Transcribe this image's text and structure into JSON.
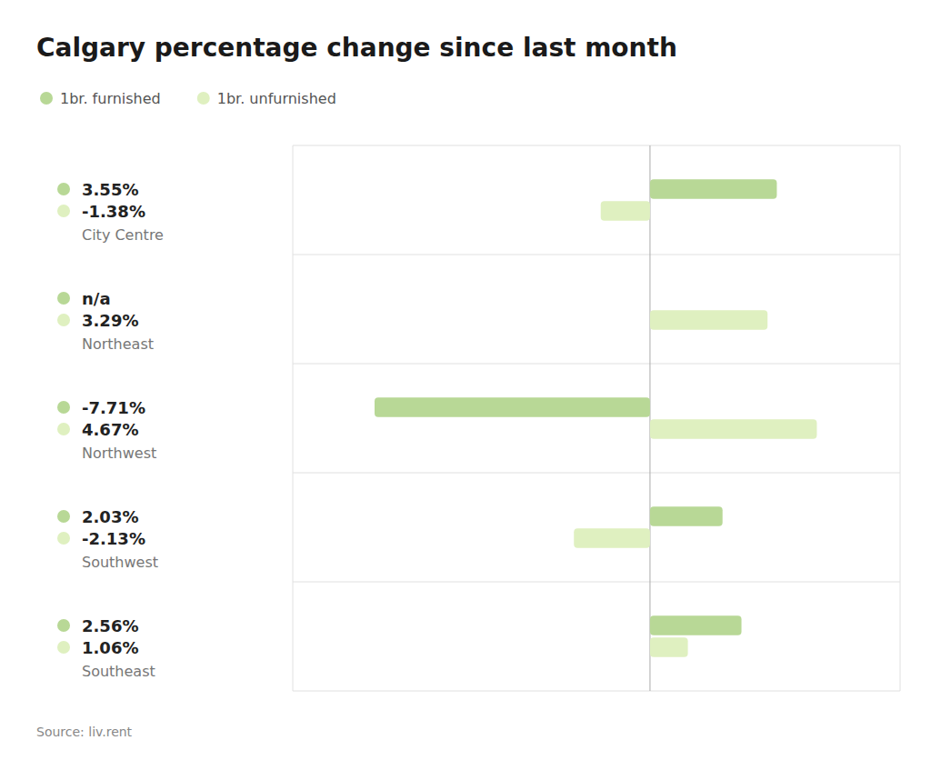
{
  "chart_data": {
    "type": "bar",
    "orientation": "horizontal",
    "title": "Calgary percentage change since last month",
    "annotations": [
      "Source: liv.rent"
    ],
    "categories": [
      "City Centre",
      "Northeast",
      "Northwest",
      "Southwest",
      "Southeast"
    ],
    "series": [
      {
        "name": "1br. furnished",
        "color": "#b8d896",
        "values": [
          3.55,
          null,
          -7.71,
          2.03,
          2.56
        ],
        "value_labels": [
          "3.55%",
          "n/a",
          "-7.71%",
          "2.03%",
          "2.56%"
        ]
      },
      {
        "name": "1br. unfurnished",
        "color": "#dff0c0",
        "values": [
          -1.38,
          3.29,
          4.67,
          -2.13,
          1.06
        ],
        "value_labels": [
          "-1.38%",
          "3.29%",
          "4.67%",
          "-2.13%",
          "1.06%"
        ]
      }
    ],
    "xlim": [
      -10,
      7
    ],
    "data_labels": true,
    "tick_labels": false,
    "grid": true,
    "legend": "top-left"
  }
}
